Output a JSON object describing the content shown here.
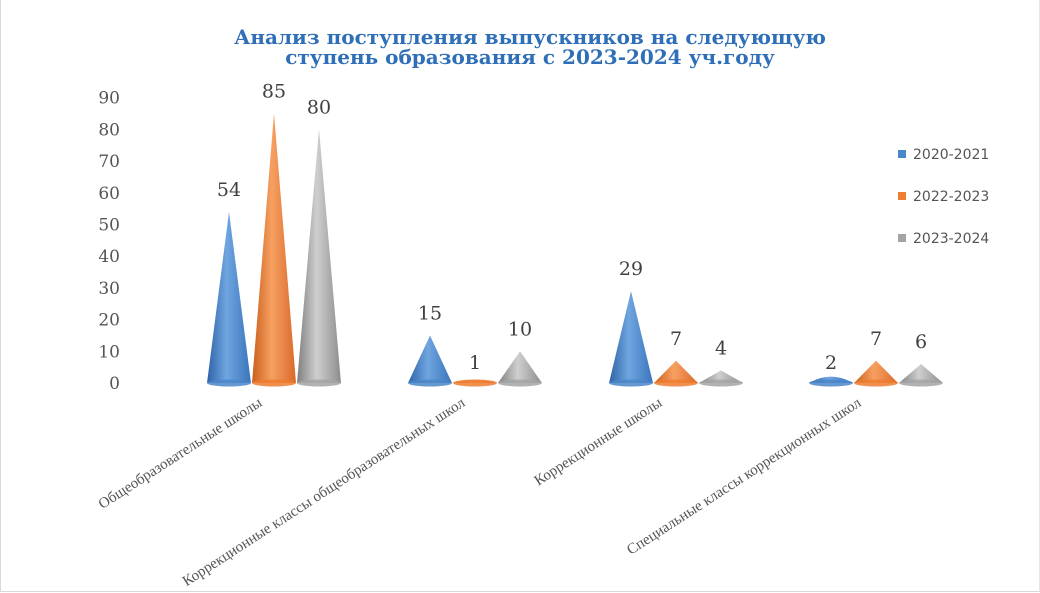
{
  "chart_data": {
    "type": "bar",
    "title_line1": "Анализ поступления выпускников на следующую",
    "title_line2": "ступень образования с 2023-2024 уч.году",
    "categories": [
      "Общеобразовательные школы",
      "Коррекционные классы общеобразовательных школ",
      "Коррекционные школы",
      "Специальные классы коррекционных школ"
    ],
    "series": [
      {
        "name": "2020-2021",
        "values": [
          54,
          15,
          29,
          2
        ]
      },
      {
        "name": "2022-2023",
        "values": [
          85,
          1,
          7,
          7
        ]
      },
      {
        "name": "2023-2024",
        "values": [
          80,
          10,
          4,
          6
        ]
      }
    ],
    "yticks": [
      "0",
      "10",
      "20",
      "30",
      "40",
      "50",
      "60",
      "70",
      "80",
      "90"
    ],
    "ylim": [
      0,
      90
    ],
    "legend_position": "right",
    "colors": [
      "#4a86c8",
      "#ed7d31",
      "#a5a5a5"
    ]
  }
}
